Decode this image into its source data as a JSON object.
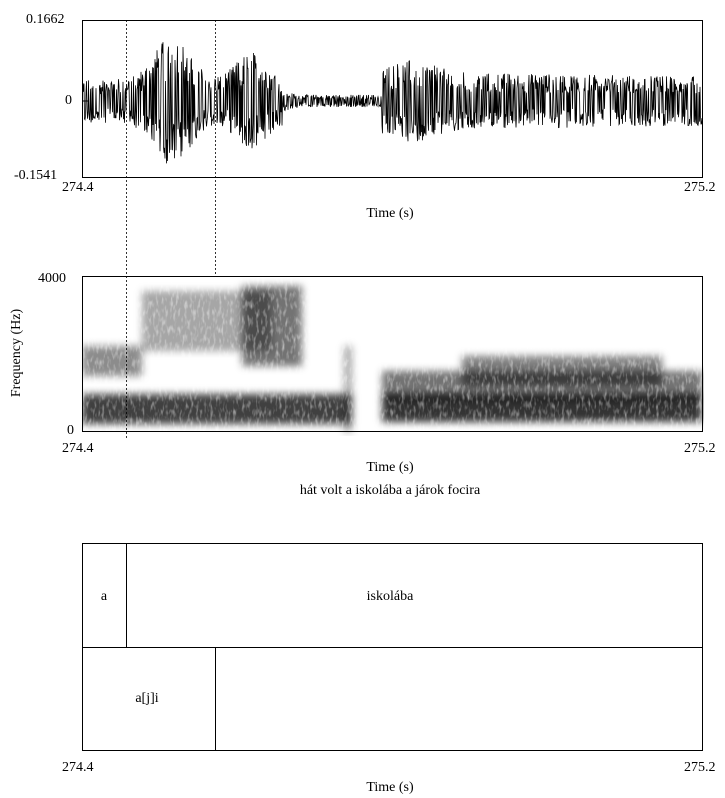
{
  "waveform": {
    "y_max_label": "0.1662",
    "y_zero_label": "0",
    "y_min_label": "-0.1541",
    "x_start_label": "274.4",
    "x_end_label": "275.2",
    "x_axis_label": "Time (s)"
  },
  "spectrogram": {
    "y_max_label": "4000",
    "y_min_label": "0",
    "y_axis_label": "Frequency (Hz)",
    "x_start_label": "274.4",
    "x_end_label": "275.2",
    "x_axis_label": "Time (s)"
  },
  "annotation": {
    "sentence": "hát volt a iskolába a járok focira",
    "tier1": {
      "seg1": "a",
      "seg2": "iskolába"
    },
    "tier2": {
      "seg1": "a[j]i"
    },
    "x_start_label": "274.4",
    "x_end_label": "275.2",
    "x_axis_label": "Time (s)"
  },
  "chart_data": {
    "type": "other",
    "time_range_s": [
      274.4,
      275.2
    ],
    "waveform_amplitude_range": [
      -0.1541,
      0.1662
    ],
    "frequency_range_hz": [
      0,
      4000
    ],
    "selection_boundaries_s": [
      274.457,
      274.57
    ]
  }
}
